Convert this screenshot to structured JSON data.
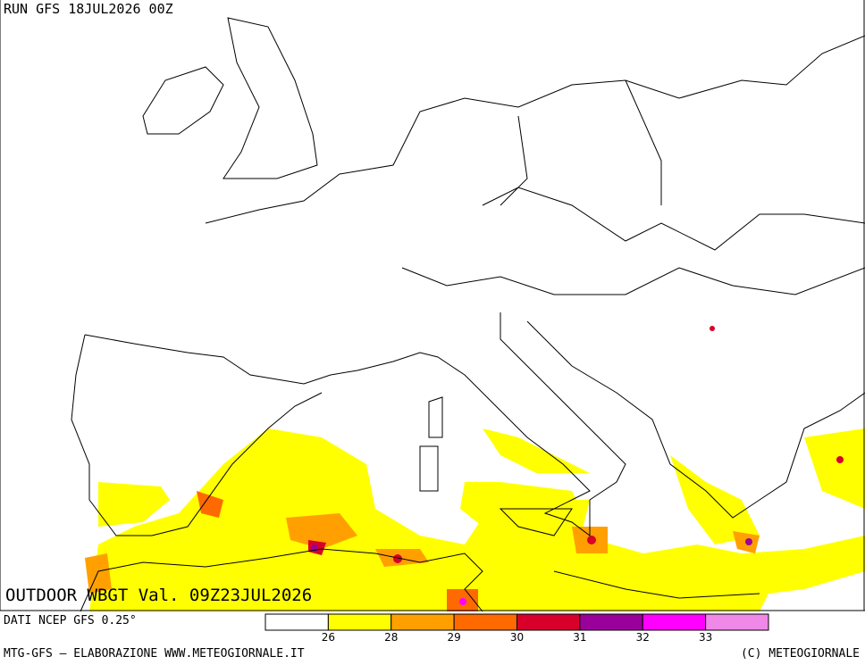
{
  "header": {
    "run": "RUN GFS 18JUL2026 00Z",
    "valid": "OUTDOOR WBGT Val. 09Z23JUL2026",
    "source": "DATI NCEP GFS 0.25°"
  },
  "legend": {
    "colors": [
      "#ffffff",
      "#ffff00",
      "#ffa000",
      "#ff6a00",
      "#d8002a",
      "#9a009a",
      "#ff00ff",
      "#f088e8"
    ],
    "labels": [
      "26",
      "28",
      "29",
      "30",
      "31",
      "32",
      "33"
    ]
  },
  "footer": {
    "left": "MTG-GFS — ELABORAZIONE WWW.METEOGIORNALE.IT",
    "right": "(C) METEOGIORNALE"
  }
}
